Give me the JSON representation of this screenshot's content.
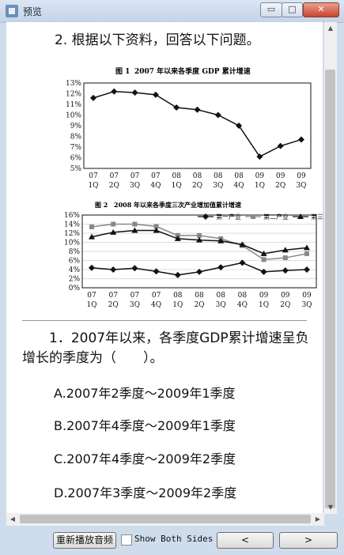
{
  "window": {
    "title": "预览",
    "minimize_glyph": "▭",
    "maximize_glyph": "□",
    "close_glyph": "✕"
  },
  "question_header": "2. 根据以下资料，回答以下问题。",
  "figures": [
    {
      "caption_num": "图 1",
      "caption_text": "2007 年以来各季度 GDP 累计增速",
      "chart_data": {
        "type": "line",
        "categories": [
          [
            "07",
            "1Q"
          ],
          [
            "07",
            "2Q"
          ],
          [
            "07",
            "3Q"
          ],
          [
            "07",
            "4Q"
          ],
          [
            "08",
            "1Q"
          ],
          [
            "08",
            "2Q"
          ],
          [
            "08",
            "3Q"
          ],
          [
            "08",
            "4Q"
          ],
          [
            "09",
            "1Q"
          ],
          [
            "09",
            "2Q"
          ],
          [
            "09",
            "3Q"
          ]
        ],
        "series": [
          {
            "values": [
              11.6,
              12.2,
              12.1,
              11.9,
              10.7,
              10.5,
              10.0,
              9.0,
              6.1,
              7.1,
              7.7
            ],
            "marker": "diamond"
          }
        ],
        "ylim": [
          5,
          13
        ],
        "ytick_labels": [
          "13%",
          "12%",
          "11%",
          "10%",
          "9%",
          "8%",
          "7%",
          "6%",
          "5%"
        ],
        "grid": false
      }
    },
    {
      "caption_num": "图 2",
      "caption_text": "2008 年以来各季度三次产业增加值累计增速",
      "chart_data": {
        "type": "line",
        "categories": [
          [
            "07",
            "1Q"
          ],
          [
            "07",
            "2Q"
          ],
          [
            "07",
            "3Q"
          ],
          [
            "07",
            "4Q"
          ],
          [
            "08",
            "1Q"
          ],
          [
            "08",
            "2Q"
          ],
          [
            "08",
            "3Q"
          ],
          [
            "08",
            "4Q"
          ],
          [
            "09",
            "1Q"
          ],
          [
            "09",
            "2Q"
          ],
          [
            "09",
            "3Q"
          ]
        ],
        "series": [
          {
            "name": "第一产业",
            "marker": "diamond",
            "color": "#111111",
            "values": [
              4.4,
              4.0,
              4.3,
              3.6,
              2.8,
              3.5,
              4.5,
              5.5,
              3.5,
              3.8,
              4.0
            ]
          },
          {
            "name": "第二产业",
            "marker": "square",
            "color": "#888888",
            "values": [
              13.4,
              14.0,
              14.0,
              13.5,
              11.5,
              11.5,
              10.8,
              9.3,
              6.2,
              6.6,
              7.5
            ]
          },
          {
            "name": "第三产业",
            "marker": "triangle",
            "color": "#111111",
            "values": [
              11.2,
              12.2,
              12.6,
              12.6,
              10.8,
              10.5,
              10.3,
              9.5,
              7.5,
              8.3,
              8.8
            ]
          }
        ],
        "ylim": [
          0,
          16
        ],
        "ytick_labels": [
          "16%",
          "14%",
          "12%",
          "10%",
          "8%",
          "6%",
          "4%",
          "2%",
          "0%"
        ],
        "legend_placement": "top",
        "grid": true
      }
    }
  ],
  "question": {
    "text": "1．2007年以来，各季度GDP累计增速呈负增长的季度为（　　）。",
    "options": [
      "A.2007年2季度～2009年1季度",
      "B.2007年4季度～2009年1季度",
      "C.2007年4季度～2009年2季度",
      "D.2007年3季度～2009年2季度"
    ]
  },
  "footer": {
    "replay_label": "重新播放音频",
    "show_both_label": "Show Both Sides",
    "show_both_checked": false,
    "prev_glyph": "<",
    "next_glyph": ">"
  }
}
